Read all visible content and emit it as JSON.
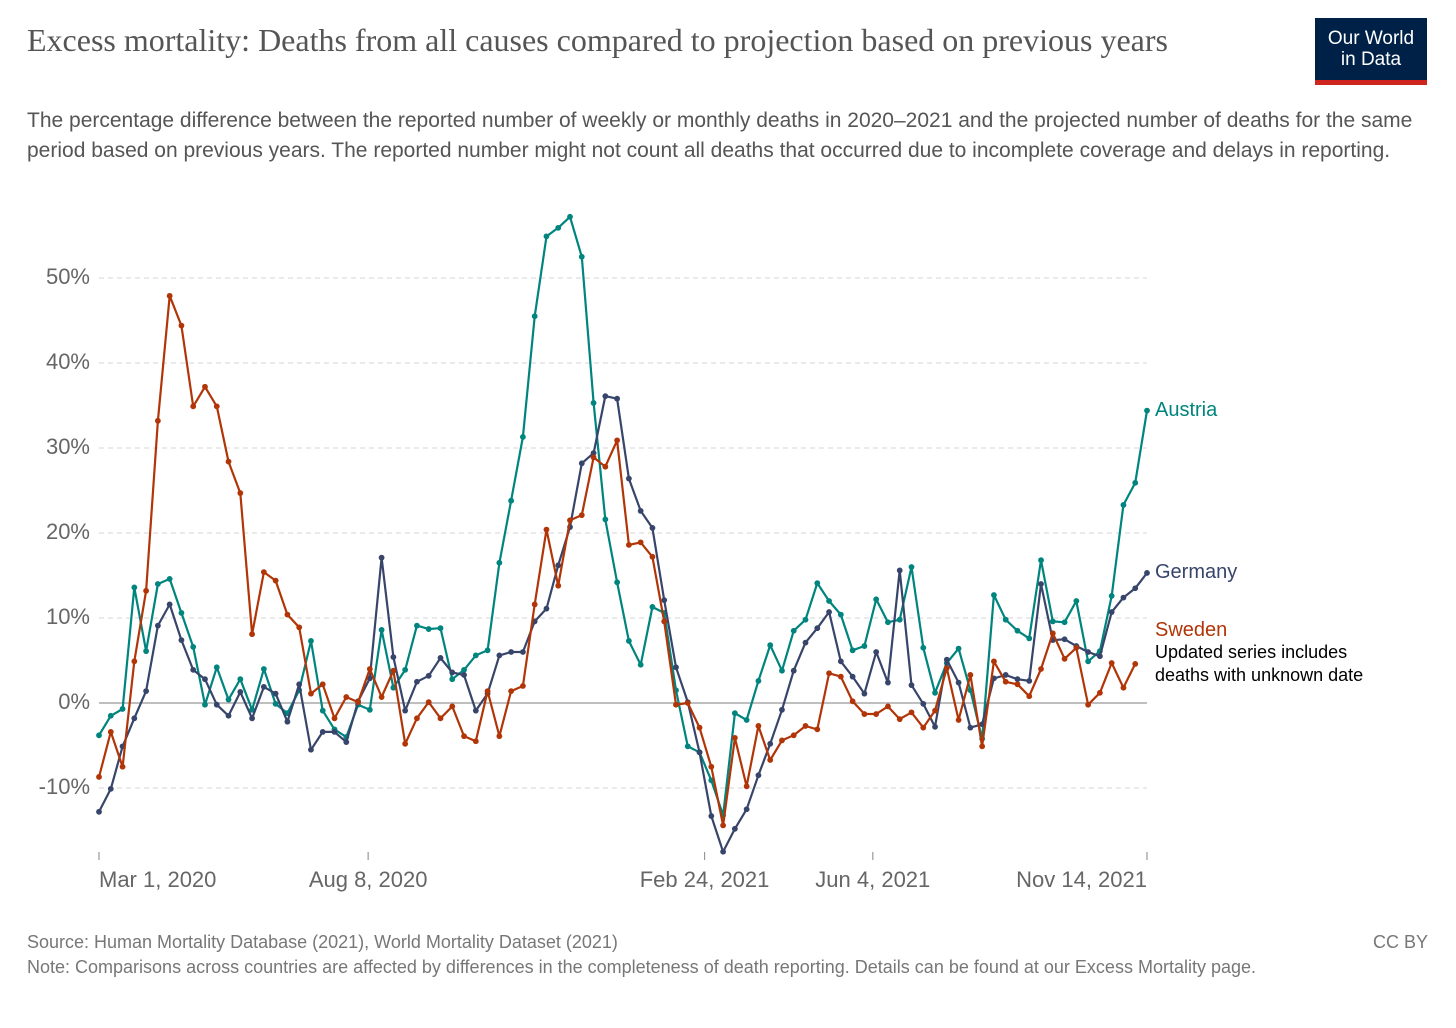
{
  "chart_data": {
    "type": "line",
    "title": "Excess mortality: Deaths from all causes compared to projection based on previous years",
    "subtitle": "The percentage difference between the reported number of weekly or monthly deaths in 2020–2021 and the projected number of deaths for the same period based on previous years. The reported number might not count all deaths that occurred due to incomplete coverage and delays in reporting.",
    "logo": [
      "Our World",
      "in Data"
    ],
    "source": "Source: Human Mortality Database (2021), World Mortality Dataset (2021)",
    "note": "Note: Comparisons across countries are affected by differences in the completeness of death reporting. Details can be found at our Excess Mortality page.",
    "license": "CC BY",
    "annotation": "Updated series includes deaths with unknown date",
    "x": [
      "2020-03-01",
      "2020-03-08",
      "2020-03-15",
      "2020-03-22",
      "2020-03-29",
      "2020-04-05",
      "2020-04-12",
      "2020-04-19",
      "2020-04-26",
      "2020-05-03",
      "2020-05-10",
      "2020-05-17",
      "2020-05-24",
      "2020-05-31",
      "2020-06-07",
      "2020-06-14",
      "2020-06-21",
      "2020-06-28",
      "2020-07-05",
      "2020-07-12",
      "2020-07-19",
      "2020-07-26",
      "2020-08-02",
      "2020-08-09",
      "2020-08-16",
      "2020-08-23",
      "2020-08-30",
      "2020-09-06",
      "2020-09-13",
      "2020-09-20",
      "2020-09-27",
      "2020-10-04",
      "2020-10-11",
      "2020-10-18",
      "2020-10-25",
      "2020-11-01",
      "2020-11-08",
      "2020-11-15",
      "2020-11-22",
      "2020-11-29",
      "2020-12-06",
      "2020-12-13",
      "2020-12-20",
      "2020-12-27",
      "2021-01-03",
      "2021-01-10",
      "2021-01-17",
      "2021-01-24",
      "2021-01-31",
      "2021-02-07",
      "2021-02-14",
      "2021-02-21",
      "2021-02-28",
      "2021-03-07",
      "2021-03-14",
      "2021-03-21",
      "2021-03-28",
      "2021-04-04",
      "2021-04-11",
      "2021-04-18",
      "2021-04-25",
      "2021-05-02",
      "2021-05-09",
      "2021-05-16",
      "2021-05-23",
      "2021-05-30",
      "2021-06-06",
      "2021-06-13",
      "2021-06-20",
      "2021-06-27",
      "2021-07-04",
      "2021-07-11",
      "2021-07-18",
      "2021-07-25",
      "2021-08-01",
      "2021-08-08",
      "2021-08-15",
      "2021-08-22",
      "2021-08-29",
      "2021-09-05",
      "2021-09-12",
      "2021-09-19",
      "2021-09-26",
      "2021-10-03",
      "2021-10-10",
      "2021-10-17",
      "2021-10-24",
      "2021-10-31",
      "2021-11-07",
      "2021-11-14"
    ],
    "xlim": [
      "2020-03-01",
      "2021-11-14"
    ],
    "xticks": [
      {
        "value": "2020-03-01",
        "label": "Mar 1, 2020"
      },
      {
        "value": "2020-08-08",
        "label": "Aug 8, 2020"
      },
      {
        "value": "2021-02-24",
        "label": "Feb 24, 2021"
      },
      {
        "value": "2021-06-04",
        "label": "Jun 4, 2021"
      },
      {
        "value": "2021-11-14",
        "label": "Nov 14, 2021"
      }
    ],
    "ylim": [
      -18,
      58
    ],
    "yticks": [
      {
        "value": -10,
        "label": "-10%"
      },
      {
        "value": 0,
        "label": "0%"
      },
      {
        "value": 10,
        "label": "10%"
      },
      {
        "value": 20,
        "label": "20%"
      },
      {
        "value": 30,
        "label": "30%"
      },
      {
        "value": 40,
        "label": "40%"
      },
      {
        "value": 50,
        "label": "50%"
      }
    ],
    "grid": true,
    "series": [
      {
        "name": "Austria",
        "color": "#00847e",
        "values": [
          -3.8,
          -1.5,
          -0.7,
          13.6,
          6.1,
          14.0,
          14.6,
          10.6,
          6.6,
          -0.2,
          4.2,
          0.4,
          2.8,
          -0.8,
          4.0,
          -0.1,
          -1.2,
          1.5,
          7.3,
          -0.9,
          -3.1,
          -4.0,
          -0.2,
          -0.8,
          8.6,
          1.8,
          3.9,
          9.1,
          8.7,
          8.8,
          2.8,
          3.9,
          5.6,
          6.2,
          16.5,
          23.8,
          31.3,
          45.5,
          54.9,
          55.9,
          57.2,
          52.5,
          35.3,
          21.6,
          14.2,
          7.3,
          4.5,
          11.3,
          10.6,
          1.5,
          -5.1,
          -5.8,
          -9.1,
          -13.2,
          -1.2,
          -2.0,
          2.6,
          6.8,
          3.8,
          8.5,
          9.8,
          14.1,
          12.0,
          10.4,
          6.2,
          6.7,
          12.2,
          9.5,
          9.8,
          16.0,
          6.5,
          1.2,
          4.7,
          6.4,
          1.5,
          -4.2,
          12.7,
          9.8,
          8.5,
          7.6,
          16.8,
          9.6,
          9.5,
          12.0,
          4.9,
          6.1,
          12.6,
          23.3,
          25.9,
          34.4
        ]
      },
      {
        "name": "Germany",
        "color": "#38456b",
        "values": [
          -12.8,
          -10.1,
          -5.1,
          -1.8,
          1.4,
          9.1,
          11.6,
          7.4,
          3.9,
          2.8,
          -0.2,
          -1.5,
          1.3,
          -1.8,
          1.9,
          1.1,
          -2.2,
          2.2,
          -5.5,
          -3.4,
          -3.4,
          -4.6,
          0.2,
          2.9,
          17.1,
          5.4,
          -0.9,
          2.5,
          3.2,
          5.3,
          3.6,
          3.3,
          -0.9,
          1.1,
          5.6,
          6.0,
          6.0,
          9.6,
          11.1,
          16.2,
          20.7,
          28.2,
          29.4,
          36.1,
          35.8,
          26.4,
          22.6,
          20.6,
          12.1,
          4.2,
          0.1,
          -5.8,
          -13.3,
          -17.5,
          -14.8,
          -12.5,
          -8.5,
          -4.8,
          -0.8,
          3.8,
          7.1,
          8.8,
          10.7,
          4.9,
          3.1,
          1.1,
          6.0,
          2.4,
          15.6,
          2.1,
          -0.1,
          -2.8,
          5.1,
          2.4,
          -2.9,
          -2.5,
          2.9,
          3.3,
          2.8,
          2.6,
          14.0,
          7.4,
          7.5,
          6.7,
          6.0,
          5.5,
          10.7,
          12.4,
          13.5,
          15.3
        ]
      },
      {
        "name": "Sweden",
        "color": "#b13507",
        "values": [
          -8.7,
          -3.4,
          -7.5,
          4.9,
          13.2,
          33.2,
          47.9,
          44.4,
          34.9,
          37.2,
          34.9,
          28.4,
          24.7,
          8.1,
          15.4,
          14.4,
          10.4,
          8.9,
          1.1,
          2.2,
          -1.8,
          0.7,
          0.1,
          4.0,
          0.7,
          3.8,
          -4.8,
          -1.8,
          0.1,
          -1.8,
          -0.4,
          -3.9,
          -4.5,
          1.4,
          -3.9,
          1.4,
          2.0,
          11.6,
          20.4,
          13.8,
          21.5,
          22.1,
          28.9,
          27.8,
          30.9,
          18.6,
          18.9,
          17.2,
          9.6,
          -0.2,
          0.0,
          -2.9,
          -7.5,
          -14.4,
          -4.1,
          -9.8,
          -2.7,
          -6.7,
          -4.4,
          -3.8,
          -2.7,
          -3.1,
          3.5,
          3.1,
          0.2,
          -1.3,
          -1.3,
          -0.4,
          -1.9,
          -1.1,
          -2.9,
          -0.9,
          4.1,
          -2.0,
          3.3,
          -5.1,
          4.9,
          2.5,
          2.2,
          0.8,
          4.0,
          8.2,
          5.2,
          6.5,
          -0.2,
          1.2,
          4.7,
          1.8,
          4.6,
          null
        ]
      }
    ]
  }
}
